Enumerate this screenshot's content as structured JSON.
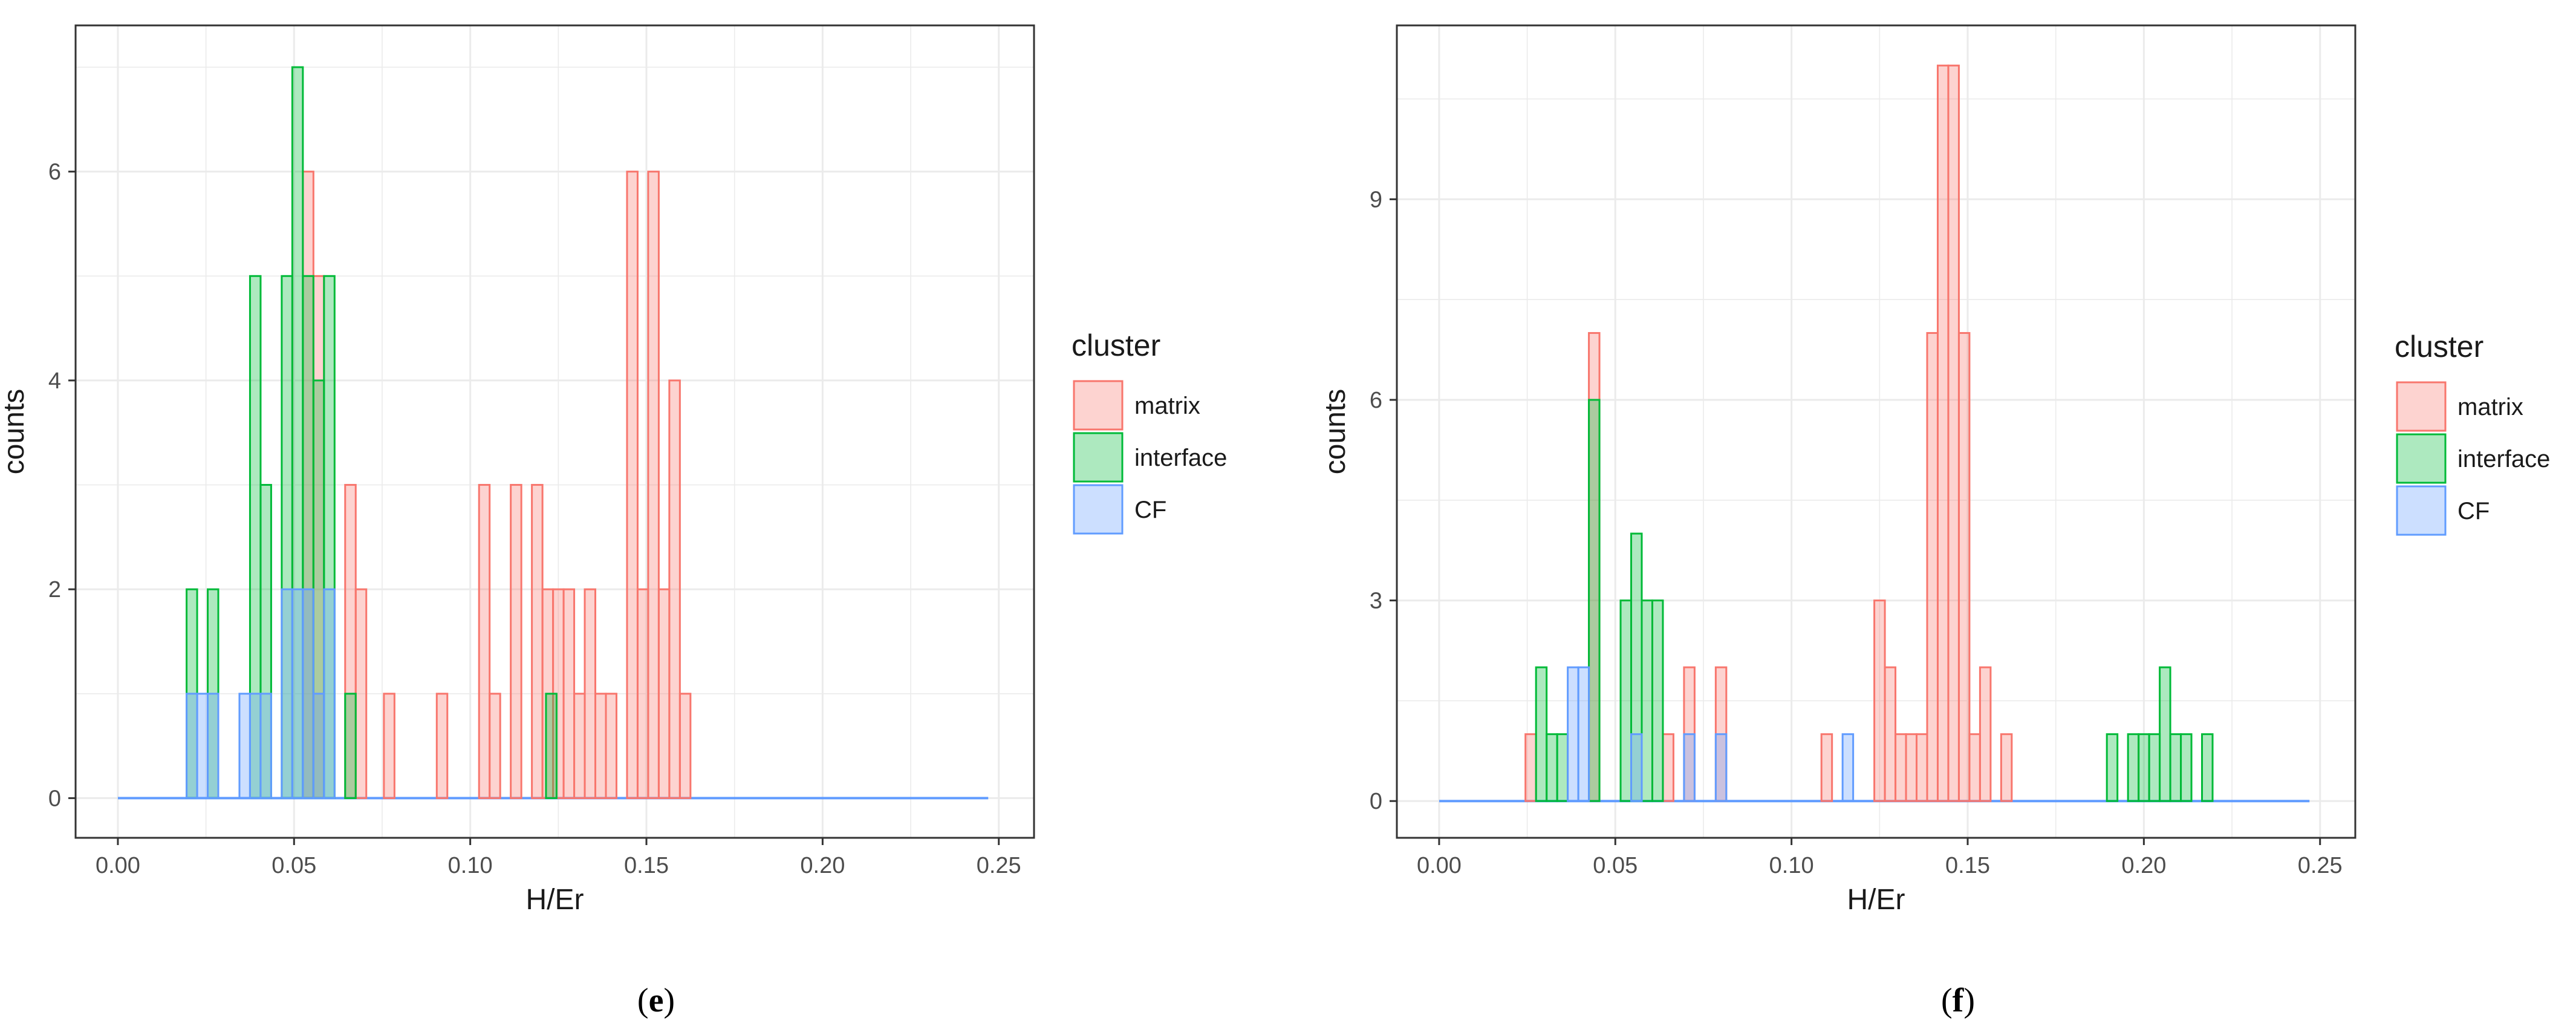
{
  "chart_data": [
    {
      "type": "histogram",
      "caption": "e",
      "xlabel": "H/Er",
      "ylabel": "counts",
      "xlim": [
        -0.012,
        0.26
      ],
      "ylim": [
        -0.38,
        7.4
      ],
      "xticks": [
        0.0,
        0.05,
        0.1,
        0.15,
        0.2,
        0.25
      ],
      "xtick_labels": [
        "0.00",
        "0.05",
        "0.10",
        "0.15",
        "0.20",
        "0.25"
      ],
      "yticks": [
        0,
        2,
        4,
        6
      ],
      "ytick_labels": [
        "0",
        "2",
        "4",
        "6"
      ],
      "bin_width": 0.003,
      "grid": true,
      "baseline": {
        "from": 0.0,
        "to": 0.247,
        "color": "#619CFF"
      },
      "legend": {
        "title": "cluster",
        "position": "right",
        "entries": [
          "matrix",
          "interface",
          "CF"
        ]
      },
      "series": [
        {
          "name": "matrix",
          "stroke": "#F8766D",
          "fill": "#F8766D",
          "bins": [
            [
              0.054,
              6
            ],
            [
              0.057,
              5
            ],
            [
              0.066,
              3
            ],
            [
              0.069,
              2
            ],
            [
              0.077,
              1
            ],
            [
              0.092,
              1
            ],
            [
              0.104,
              3
            ],
            [
              0.107,
              1
            ],
            [
              0.113,
              3
            ],
            [
              0.119,
              3
            ],
            [
              0.122,
              2
            ],
            [
              0.125,
              2
            ],
            [
              0.128,
              2
            ],
            [
              0.131,
              1
            ],
            [
              0.134,
              2
            ],
            [
              0.137,
              1
            ],
            [
              0.14,
              1
            ],
            [
              0.146,
              6
            ],
            [
              0.149,
              2
            ],
            [
              0.152,
              6
            ],
            [
              0.155,
              2
            ],
            [
              0.158,
              4
            ],
            [
              0.161,
              1
            ]
          ]
        },
        {
          "name": "interface",
          "stroke": "#00BA38",
          "fill": "#00BA38",
          "bins": [
            [
              0.021,
              2
            ],
            [
              0.027,
              2
            ],
            [
              0.039,
              5
            ],
            [
              0.042,
              3
            ],
            [
              0.048,
              5
            ],
            [
              0.051,
              7
            ],
            [
              0.054,
              5
            ],
            [
              0.057,
              4
            ],
            [
              0.06,
              5
            ],
            [
              0.066,
              1
            ],
            [
              0.123,
              1
            ]
          ]
        },
        {
          "name": "CF",
          "stroke": "#619CFF",
          "fill": "#619CFF",
          "bins": [
            [
              0.021,
              1
            ],
            [
              0.024,
              1
            ],
            [
              0.027,
              1
            ],
            [
              0.036,
              1
            ],
            [
              0.039,
              1
            ],
            [
              0.042,
              1
            ],
            [
              0.048,
              2
            ],
            [
              0.051,
              2
            ],
            [
              0.054,
              2
            ],
            [
              0.057,
              1
            ],
            [
              0.06,
              2
            ]
          ]
        }
      ]
    },
    {
      "type": "histogram",
      "caption": "f",
      "xlabel": "H/Er",
      "ylabel": "counts",
      "xlim": [
        -0.012,
        0.26
      ],
      "ylim": [
        -0.55,
        11.6
      ],
      "xticks": [
        0.0,
        0.05,
        0.1,
        0.15,
        0.2,
        0.25
      ],
      "xtick_labels": [
        "0.00",
        "0.05",
        "0.10",
        "0.15",
        "0.20",
        "0.25"
      ],
      "yticks": [
        0,
        3,
        6,
        9
      ],
      "ytick_labels": [
        "0",
        "3",
        "6",
        "9"
      ],
      "bin_width": 0.003,
      "grid": true,
      "baseline": {
        "from": 0.0,
        "to": 0.247,
        "color": "#619CFF"
      },
      "legend": {
        "title": "cluster",
        "position": "right",
        "entries": [
          "matrix",
          "interface",
          "CF"
        ]
      },
      "series": [
        {
          "name": "matrix",
          "stroke": "#F8766D",
          "fill": "#F8766D",
          "bins": [
            [
              0.026,
              1
            ],
            [
              0.044,
              7
            ],
            [
              0.065,
              1
            ],
            [
              0.071,
              2
            ],
            [
              0.08,
              2
            ],
            [
              0.11,
              1
            ],
            [
              0.125,
              3
            ],
            [
              0.128,
              2
            ],
            [
              0.131,
              1
            ],
            [
              0.134,
              1
            ],
            [
              0.137,
              1
            ],
            [
              0.14,
              7
            ],
            [
              0.143,
              11
            ],
            [
              0.146,
              11
            ],
            [
              0.149,
              7
            ],
            [
              0.152,
              1
            ],
            [
              0.155,
              2
            ],
            [
              0.161,
              1
            ]
          ]
        },
        {
          "name": "interface",
          "stroke": "#00BA38",
          "fill": "#00BA38",
          "bins": [
            [
              0.029,
              2
            ],
            [
              0.032,
              1
            ],
            [
              0.035,
              1
            ],
            [
              0.044,
              6
            ],
            [
              0.053,
              3
            ],
            [
              0.056,
              4
            ],
            [
              0.059,
              3
            ],
            [
              0.062,
              3
            ],
            [
              0.191,
              1
            ],
            [
              0.197,
              1
            ],
            [
              0.2,
              1
            ],
            [
              0.203,
              1
            ],
            [
              0.206,
              2
            ],
            [
              0.209,
              1
            ],
            [
              0.212,
              1
            ],
            [
              0.218,
              1
            ]
          ]
        },
        {
          "name": "CF",
          "stroke": "#619CFF",
          "fill": "#619CFF",
          "bins": [
            [
              0.038,
              2
            ],
            [
              0.041,
              2
            ],
            [
              0.056,
              1
            ],
            [
              0.071,
              1
            ],
            [
              0.08,
              1
            ],
            [
              0.116,
              1
            ]
          ]
        }
      ]
    }
  ]
}
